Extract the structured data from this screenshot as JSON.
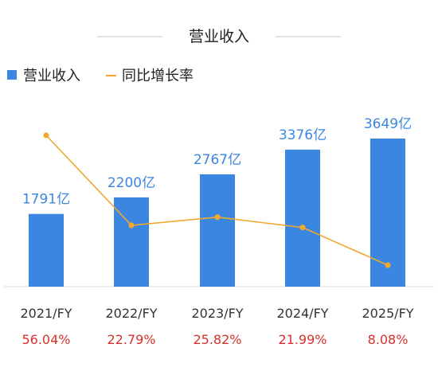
{
  "colors": {
    "bar": "#3a86e0",
    "line": "#f0a830",
    "value_label": "#3a86e0",
    "pct_label": "#d6302c",
    "axis": "#d9d9d9",
    "title_rule": "#c8c8c8"
  },
  "chart_data": {
    "type": "bar",
    "title": "营业收入",
    "categories": [
      "2021/FY",
      "2022/FY",
      "2023/FY",
      "2024/FY",
      "2025/FY"
    ],
    "series": [
      {
        "name": "营业收入",
        "type": "bar",
        "values": [
          1791,
          2200,
          2767,
          3376,
          3649
        ],
        "labels": [
          "1791亿",
          "2200亿",
          "2767亿",
          "3376亿",
          "3649亿"
        ]
      },
      {
        "name": "同比增长率",
        "type": "line",
        "values": [
          56.04,
          22.79,
          25.82,
          21.99,
          8.08
        ],
        "labels": [
          "56.04%",
          "22.79%",
          "25.82%",
          "21.99%",
          "8.08%"
        ]
      }
    ],
    "legend_position": "top-left",
    "grid": false
  }
}
